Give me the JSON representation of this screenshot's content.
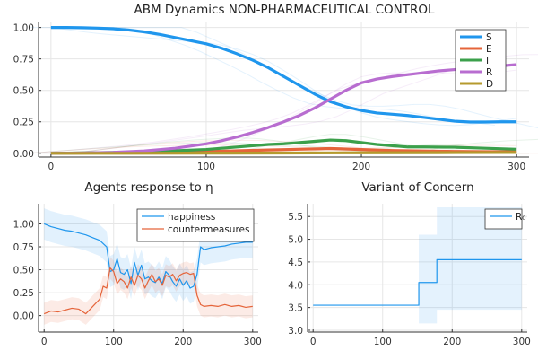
{
  "chart_data": [
    {
      "type": "line",
      "title": "ABM Dynamics NON-PHARMACEUTICAL CONTROL",
      "xlim": [
        -8,
        308
      ],
      "ylim": [
        -0.03,
        1.04
      ],
      "xticks": [
        0,
        100,
        200,
        300
      ],
      "yticks": [
        0.0,
        0.25,
        0.5,
        0.75,
        1.0
      ],
      "ytick_labels": [
        "0.00",
        "0.25",
        "0.50",
        "0.75",
        "1.00"
      ],
      "legend_position": "top-right",
      "series": [
        {
          "name": "S",
          "color": "#1f96ed",
          "x": [
            0,
            10,
            20,
            30,
            40,
            50,
            60,
            70,
            80,
            90,
            100,
            110,
            120,
            130,
            140,
            150,
            160,
            170,
            180,
            190,
            200,
            210,
            220,
            230,
            240,
            250,
            260,
            270,
            280,
            290,
            300
          ],
          "y": [
            1.0,
            1.0,
            0.998,
            0.995,
            0.99,
            0.98,
            0.965,
            0.945,
            0.92,
            0.895,
            0.87,
            0.835,
            0.79,
            0.74,
            0.68,
            0.61,
            0.54,
            0.47,
            0.41,
            0.37,
            0.34,
            0.32,
            0.31,
            0.3,
            0.285,
            0.27,
            0.255,
            0.248,
            0.248,
            0.25,
            0.25
          ]
        },
        {
          "name": "E",
          "color": "#e5643a",
          "x": [
            0,
            20,
            40,
            60,
            80,
            100,
            120,
            140,
            160,
            180,
            200,
            220,
            240,
            260,
            280,
            300
          ],
          "y": [
            0.0,
            0.002,
            0.004,
            0.006,
            0.009,
            0.013,
            0.02,
            0.026,
            0.032,
            0.038,
            0.03,
            0.022,
            0.018,
            0.015,
            0.013,
            0.012
          ]
        },
        {
          "name": "I",
          "color": "#3ba04b",
          "x": [
            0,
            20,
            40,
            60,
            80,
            100,
            110,
            120,
            130,
            140,
            150,
            160,
            170,
            180,
            190,
            200,
            210,
            220,
            230,
            240,
            260,
            280,
            300
          ],
          "y": [
            0.0,
            0.003,
            0.007,
            0.012,
            0.02,
            0.03,
            0.04,
            0.05,
            0.06,
            0.07,
            0.075,
            0.085,
            0.095,
            0.105,
            0.1,
            0.085,
            0.07,
            0.06,
            0.05,
            0.05,
            0.048,
            0.04,
            0.032
          ]
        },
        {
          "name": "R",
          "color": "#b86dd0",
          "x": [
            0,
            20,
            40,
            60,
            80,
            100,
            110,
            120,
            130,
            140,
            150,
            160,
            170,
            180,
            190,
            200,
            210,
            220,
            230,
            240,
            250,
            260,
            270,
            280,
            290,
            300
          ],
          "y": [
            0.0,
            0.002,
            0.007,
            0.018,
            0.04,
            0.075,
            0.1,
            0.13,
            0.165,
            0.205,
            0.25,
            0.3,
            0.36,
            0.43,
            0.5,
            0.56,
            0.59,
            0.61,
            0.625,
            0.64,
            0.655,
            0.665,
            0.675,
            0.685,
            0.695,
            0.705
          ]
        },
        {
          "name": "D",
          "color": "#b59a2e",
          "x": [
            0,
            50,
            100,
            150,
            200,
            250,
            300
          ],
          "y": [
            0.0,
            0.0,
            0.001,
            0.002,
            0.004,
            0.005,
            0.006
          ]
        }
      ]
    },
    {
      "type": "line",
      "title": "Agents response to η",
      "xlim": [
        -8,
        308
      ],
      "ylim": [
        -0.18,
        1.22
      ],
      "xticks": [
        0,
        100,
        200,
        300
      ],
      "yticks": [
        0.0,
        0.25,
        0.5,
        0.75,
        1.0
      ],
      "ytick_labels": [
        "0.00",
        "0.25",
        "0.50",
        "0.75",
        "1.00"
      ],
      "legend_position": "top-right",
      "series": [
        {
          "name": "happiness",
          "color": "#1f96ed",
          "x": [
            0,
            10,
            20,
            30,
            40,
            50,
            60,
            70,
            80,
            90,
            95,
            100,
            105,
            110,
            115,
            120,
            125,
            130,
            135,
            140,
            145,
            150,
            155,
            160,
            165,
            170,
            175,
            180,
            185,
            190,
            195,
            200,
            205,
            210,
            215,
            220,
            225,
            230,
            240,
            250,
            260,
            270,
            280,
            290,
            300
          ],
          "y": [
            1.0,
            0.97,
            0.95,
            0.93,
            0.92,
            0.9,
            0.88,
            0.85,
            0.82,
            0.75,
            0.48,
            0.5,
            0.62,
            0.47,
            0.45,
            0.5,
            0.35,
            0.58,
            0.44,
            0.55,
            0.4,
            0.42,
            0.38,
            0.36,
            0.42,
            0.35,
            0.48,
            0.44,
            0.37,
            0.32,
            0.4,
            0.33,
            0.38,
            0.3,
            0.32,
            0.45,
            0.75,
            0.72,
            0.74,
            0.75,
            0.76,
            0.78,
            0.79,
            0.8,
            0.8
          ]
        },
        {
          "name": "countermeasures",
          "color": "#e5643a",
          "x": [
            0,
            10,
            20,
            30,
            40,
            50,
            60,
            70,
            80,
            85,
            90,
            95,
            100,
            105,
            110,
            115,
            120,
            125,
            130,
            135,
            140,
            145,
            150,
            155,
            160,
            165,
            170,
            175,
            180,
            185,
            190,
            195,
            200,
            205,
            210,
            215,
            220,
            225,
            230,
            240,
            250,
            260,
            270,
            280,
            290,
            300
          ],
          "y": [
            0.02,
            0.05,
            0.04,
            0.06,
            0.08,
            0.07,
            0.02,
            0.1,
            0.18,
            0.32,
            0.3,
            0.52,
            0.48,
            0.35,
            0.4,
            0.37,
            0.3,
            0.42,
            0.33,
            0.44,
            0.4,
            0.3,
            0.38,
            0.45,
            0.37,
            0.4,
            0.33,
            0.44,
            0.42,
            0.45,
            0.38,
            0.44,
            0.46,
            0.47,
            0.45,
            0.46,
            0.22,
            0.12,
            0.1,
            0.11,
            0.1,
            0.12,
            0.1,
            0.11,
            0.09,
            0.1
          ]
        }
      ]
    },
    {
      "type": "line",
      "title": "Variant of Concern",
      "xlim": [
        -8,
        308
      ],
      "ylim": [
        2.96,
        5.78
      ],
      "xticks": [
        0,
        100,
        200,
        300
      ],
      "yticks": [
        3.0,
        3.5,
        4.0,
        4.5,
        5.0,
        5.5
      ],
      "ytick_labels": [
        "3.0",
        "3.5",
        "4.0",
        "4.5",
        "5.0",
        "5.5"
      ],
      "legend_position": "top-right",
      "series": [
        {
          "name": "R₀",
          "color": "#1f96ed",
          "x": [
            0,
            152,
            152,
            178,
            178,
            300
          ],
          "y": [
            3.55,
            3.55,
            4.05,
            4.05,
            4.55,
            4.55
          ]
        }
      ]
    }
  ]
}
